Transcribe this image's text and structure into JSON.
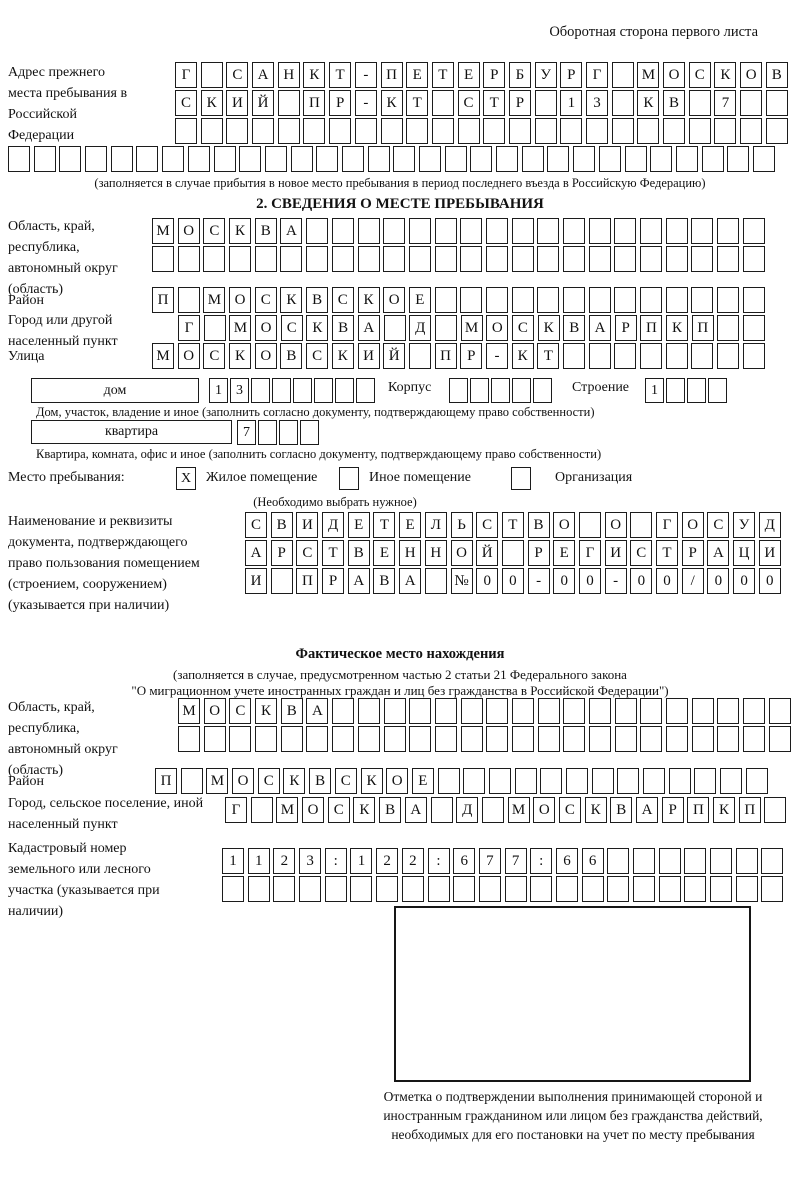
{
  "page": {
    "header_note": "Оборотная сторона первого листа"
  },
  "prev_address": {
    "label": "Адрес прежнего места пребывания в Российской Федерации",
    "rows": [
      "Г САНКТ-ПЕТЕРБУРГ МОСКОВ",
      "СКИЙ ПР-КТ СТР 13 КВ 7",
      "",
      ""
    ],
    "note": "(заполняется в случае прибытия в новое место пребывания в период последнего въезда в Российскую Федерацию)"
  },
  "section2": {
    "title": "2. СВЕДЕНИЯ О МЕСТЕ ПРЕБЫВАНИЯ",
    "region": {
      "label": "Область, край, республика, автономный округ (область)",
      "rows": [
        "МОСКВА",
        ""
      ]
    },
    "district": {
      "label": "Район",
      "value": "П МОСКВСКОЕ"
    },
    "city": {
      "label": "Город или другой населенный пункт",
      "value": "Г МОСКВА Д МОСКВАРПКП"
    },
    "street": {
      "label": "Улица",
      "value": "МОСКОВСКИЙ ПР-КТ"
    },
    "house": {
      "label": "дом",
      "value": "13",
      "korpus_label": "Корпус",
      "korpus_value": "",
      "stroenie_label": "Строение",
      "stroenie_value": "1"
    },
    "house_note": "Дом, участок, владение и иное (заполнить согласно документу, подтверждающему право собственности)",
    "apartment": {
      "label": "квартира",
      "value": "7"
    },
    "apartment_note": "Квартира, комната, офис и иное (заполнить согласно документу, подтверждающему право собственности)",
    "stay": {
      "label": "Место пребывания:",
      "mark": "X",
      "option1": "Жилое помещение",
      "option2": "Иное помещение",
      "option3": "Организация",
      "note": "(Необходимо выбрать нужное)"
    },
    "document": {
      "label": "Наименование и реквизиты документа, подтверждающего право пользования помещением (строением, сооружением) (указывается при наличии)",
      "rows": [
        "СВИДЕТЕЛЬСТВО О ГОСУД",
        "АРСТВЕННОЙ РЕГИСТРАЦИ",
        "И ПРАВА №00-00-00/000"
      ]
    }
  },
  "actual": {
    "title": "Фактическое место нахождения",
    "note1": "(заполняется в случае, предусмотренном частью 2 статьи 21 Федерального закона",
    "note2": "\"О миграционном учете иностранных граждан и лиц без гражданства в Российской Федерации\")",
    "region": {
      "label": "Область, край, республика, автономный округ (область)",
      "rows": [
        "МОСКВА",
        ""
      ]
    },
    "district": {
      "label": "Район",
      "value": "П МОСКВСКОЕ"
    },
    "city": {
      "label": "Город, сельское поселение, иной населенный пункт",
      "value": "Г МОСКВА Д МОСКВАРПКП"
    },
    "cadastral": {
      "label": "Кадастровый номер земельного или лесного участка (указывается при наличии)",
      "rows": [
        "1123:122:677:66",
        ""
      ]
    },
    "stamp_note": "Отметка о подтверждении выполнения принимающей стороной и иностранным гражданином или лицом без гражданства действий, необходимых для его постановки на учет по месту пребывания"
  }
}
